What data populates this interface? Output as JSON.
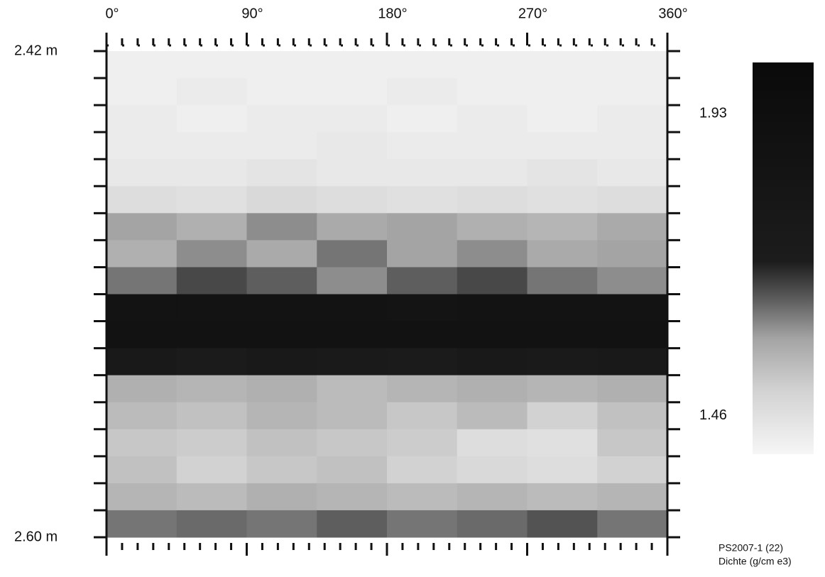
{
  "chart_data": {
    "type": "heatmap",
    "title": "PS2007-1 (22)",
    "colorbar_label": "Dichte (g/cm e3)",
    "x_edges": [
      0,
      45,
      90,
      135,
      180,
      225,
      270,
      315,
      360
    ],
    "y_edges": [
      2.42,
      2.43,
      2.44,
      2.45,
      2.46,
      2.47,
      2.48,
      2.49,
      2.5,
      2.51,
      2.52,
      2.53,
      2.54,
      2.55,
      2.56,
      2.57,
      2.58,
      2.59,
      2.6
    ],
    "values": [
      [
        1.42,
        1.42,
        1.42,
        1.42,
        1.42,
        1.42,
        1.42,
        1.42
      ],
      [
        1.42,
        1.43,
        1.42,
        1.42,
        1.43,
        1.42,
        1.42,
        1.42
      ],
      [
        1.43,
        1.42,
        1.43,
        1.43,
        1.42,
        1.43,
        1.42,
        1.43
      ],
      [
        1.43,
        1.43,
        1.43,
        1.44,
        1.43,
        1.43,
        1.43,
        1.43
      ],
      [
        1.44,
        1.44,
        1.45,
        1.44,
        1.44,
        1.44,
        1.45,
        1.44
      ],
      [
        1.47,
        1.46,
        1.48,
        1.47,
        1.46,
        1.47,
        1.46,
        1.47
      ],
      [
        1.58,
        1.56,
        1.6,
        1.57,
        1.58,
        1.56,
        1.55,
        1.57
      ],
      [
        1.56,
        1.6,
        1.57,
        1.62,
        1.58,
        1.6,
        1.57,
        1.58
      ],
      [
        1.62,
        1.66,
        1.64,
        1.6,
        1.64,
        1.66,
        1.62,
        1.6
      ],
      [
        1.85,
        1.85,
        1.86,
        1.85,
        1.84,
        1.85,
        1.86,
        1.85
      ],
      [
        1.88,
        1.87,
        1.88,
        1.88,
        1.87,
        1.88,
        1.87,
        1.88
      ],
      [
        1.75,
        1.72,
        1.76,
        1.74,
        1.72,
        1.75,
        1.73,
        1.76
      ],
      [
        1.56,
        1.55,
        1.56,
        1.54,
        1.55,
        1.56,
        1.55,
        1.56
      ],
      [
        1.54,
        1.53,
        1.55,
        1.54,
        1.52,
        1.54,
        1.5,
        1.53
      ],
      [
        1.52,
        1.51,
        1.53,
        1.52,
        1.51,
        1.47,
        1.46,
        1.52
      ],
      [
        1.53,
        1.5,
        1.52,
        1.53,
        1.5,
        1.48,
        1.47,
        1.5
      ],
      [
        1.55,
        1.54,
        1.56,
        1.55,
        1.54,
        1.55,
        1.54,
        1.55
      ],
      [
        1.62,
        1.63,
        1.62,
        1.64,
        1.62,
        1.63,
        1.65,
        1.62
      ]
    ],
    "xlim": [
      0,
      360
    ],
    "xticks": [
      {
        "value": 0,
        "label": "0°"
      },
      {
        "value": 90,
        "label": "90°"
      },
      {
        "value": 180,
        "label": "180°"
      },
      {
        "value": 270,
        "label": "270°"
      },
      {
        "value": 360,
        "label": "360°"
      }
    ],
    "xticks_minor": [
      10,
      20,
      30,
      40,
      50,
      60,
      70,
      80,
      100,
      110,
      120,
      130,
      140,
      150,
      160,
      170,
      190,
      200,
      210,
      220,
      230,
      240,
      250,
      260,
      280,
      290,
      300,
      310,
      320,
      330,
      340,
      350
    ],
    "ylim": [
      2.42,
      2.6
    ],
    "yticks": [
      {
        "value": 2.42,
        "label": "2.42 m"
      },
      {
        "value": 2.6,
        "label": "2.60 m"
      }
    ],
    "yticks_minor": [
      2.43,
      2.44,
      2.45,
      2.46,
      2.47,
      2.48,
      2.49,
      2.5,
      2.51,
      2.52,
      2.53,
      2.54,
      2.55,
      2.56,
      2.57,
      2.58,
      2.59
    ],
    "clim": [
      1.4,
      2.01
    ],
    "cticks": [
      1.93,
      1.46
    ],
    "colormap": [
      {
        "value": 1.4,
        "color": "#f6f6f6"
      },
      {
        "value": 1.5,
        "color": "#d2d2d2"
      },
      {
        "value": 1.58,
        "color": "#a4a4a4"
      },
      {
        "value": 1.64,
        "color": "#5e5e5e"
      },
      {
        "value": 1.7,
        "color": "#1c1c1c"
      },
      {
        "value": 2.01,
        "color": "#0a0a0a"
      }
    ]
  }
}
